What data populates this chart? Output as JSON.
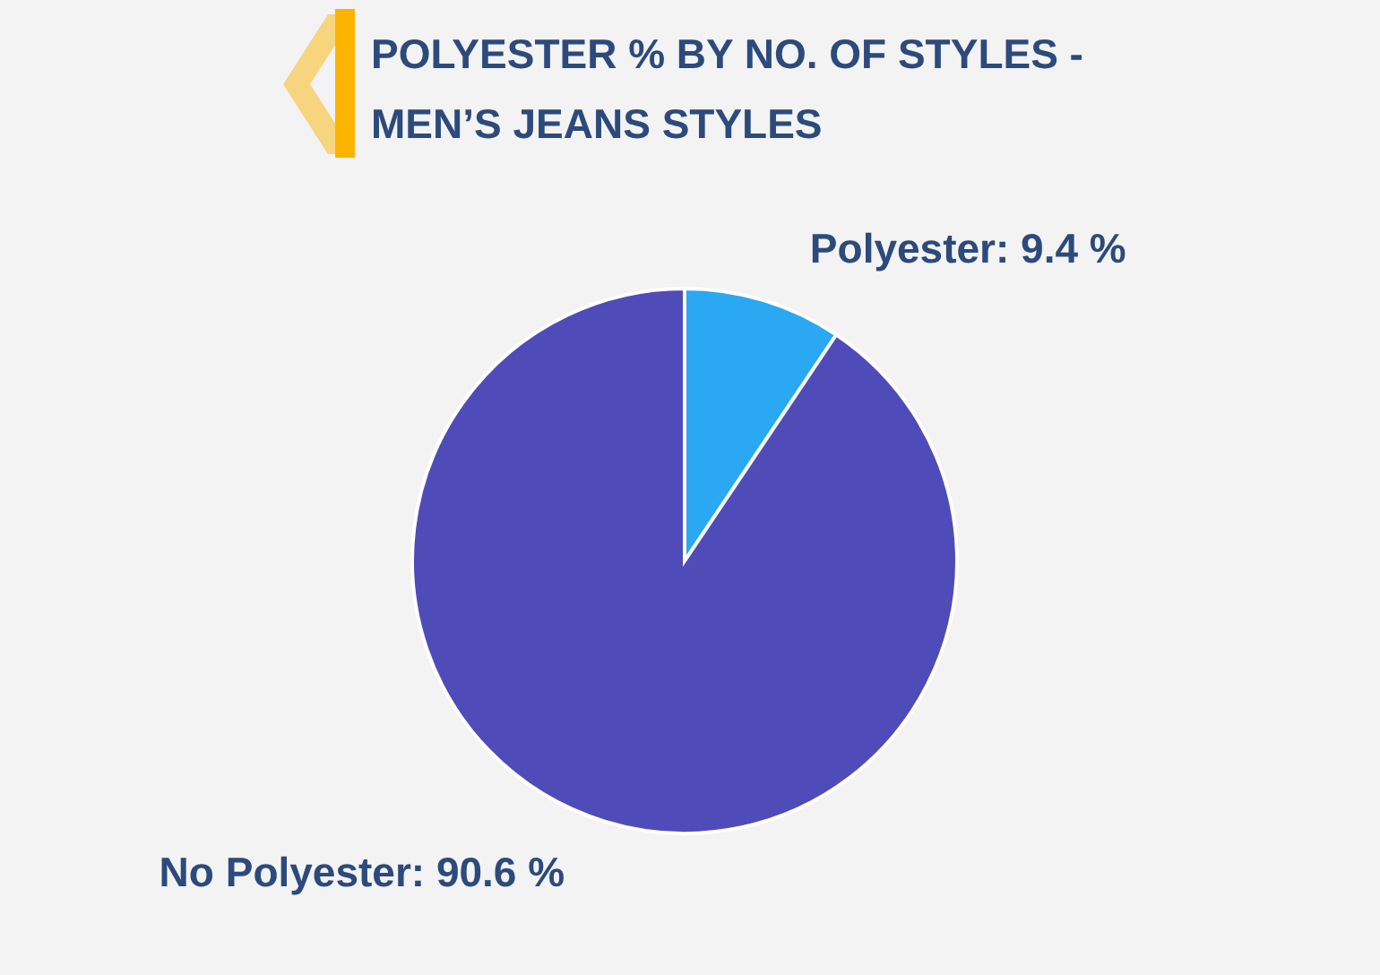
{
  "chart_data": {
    "type": "pie",
    "title": "POLYESTER % BY NO. OF STYLES - MEN’S JEANS STYLES",
    "categories": [
      "Polyester",
      "No Polyester"
    ],
    "values": [
      9.4,
      90.6
    ],
    "colors": [
      "#2aa8f2",
      "#4f4bb8"
    ],
    "value_labels": [
      "9.4 %",
      "90.6 %"
    ]
  }
}
